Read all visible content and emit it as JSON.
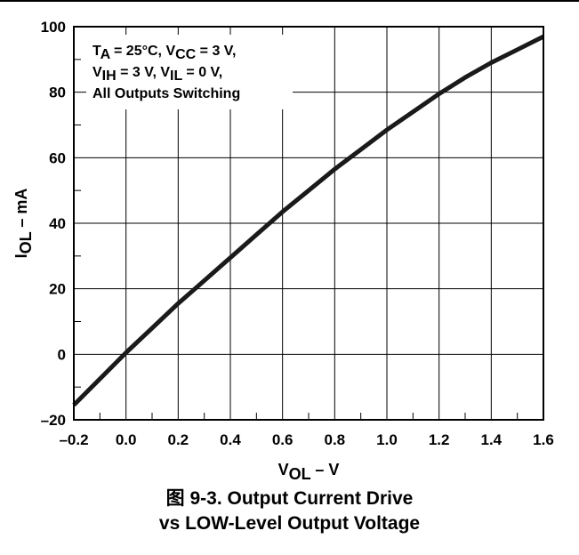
{
  "caption": {
    "line1": "图 9-3. Output Current Drive",
    "line2": "vs LOW-Level Output Voltage"
  },
  "chart_data": {
    "type": "line",
    "x_axis": {
      "title_main": "V",
      "title_sub": "OL",
      "title_suffix": " – V",
      "range": [
        -0.2,
        1.6
      ],
      "ticks": [
        -0.2,
        0.0,
        0.2,
        0.4,
        0.6,
        0.8,
        1.0,
        1.2,
        1.4,
        1.6
      ],
      "tick_labels": [
        "–0.2",
        "0.0",
        "0.2",
        "0.4",
        "0.6",
        "0.8",
        "1.0",
        "1.2",
        "1.4",
        "1.6"
      ]
    },
    "y_axis": {
      "title_main": "I",
      "title_sub": "OL",
      "title_suffix": " – mA",
      "range": [
        -20,
        100
      ],
      "ticks": [
        -20,
        0,
        20,
        40,
        60,
        80,
        100
      ],
      "tick_labels": [
        "–20",
        "0",
        "20",
        "40",
        "60",
        "80",
        "100"
      ]
    },
    "grid": true,
    "annotation": {
      "lines": [
        [
          {
            "t": "T"
          },
          {
            "t": "A",
            "sub": true
          },
          {
            "t": " = 25°C, V"
          },
          {
            "t": "CC",
            "sub": true
          },
          {
            "t": " = 3 V,"
          }
        ],
        [
          {
            "t": "V"
          },
          {
            "t": "IH",
            "sub": true
          },
          {
            "t": " = 3 V, V"
          },
          {
            "t": "IL",
            "sub": true
          },
          {
            "t": " = 0 V,"
          }
        ],
        [
          {
            "t": "All Outputs Switching"
          }
        ]
      ],
      "placement": "top-left"
    },
    "series": [
      {
        "x": [
          -0.2,
          -0.1,
          0.0,
          0.1,
          0.2,
          0.3,
          0.4,
          0.5,
          0.6,
          0.7,
          0.8,
          0.9,
          1.0,
          1.1,
          1.2,
          1.3,
          1.4,
          1.5,
          1.6
        ],
        "y": [
          -15.5,
          -7.5,
          0.5,
          8.0,
          15.5,
          22.5,
          29.5,
          36.5,
          43.5,
          50.0,
          56.5,
          62.5,
          68.5,
          74.0,
          79.5,
          84.5,
          89.0,
          93.0,
          97.0
        ],
        "color": "#1a1a1a"
      }
    ]
  }
}
